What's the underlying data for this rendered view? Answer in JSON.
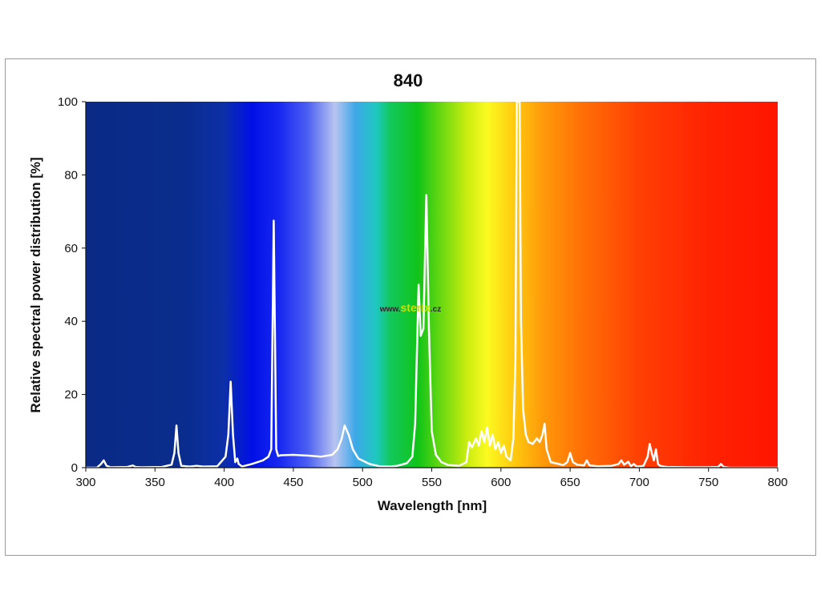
{
  "chart_data": {
    "type": "line",
    "title": "840",
    "xlabel": "Wavelength [nm]",
    "ylabel": "Relative spectral power distribution [%]",
    "xlim": [
      300,
      800
    ],
    "ylim": [
      0,
      100
    ],
    "xticks": [
      300,
      350,
      400,
      450,
      500,
      550,
      600,
      650,
      700,
      750,
      800
    ],
    "yticks": [
      0,
      20,
      40,
      60,
      80,
      100
    ],
    "grid": false,
    "legend": "none",
    "line_color": "#ffffff",
    "background": "visible-spectrum color gradient",
    "series": [
      {
        "x": [
          300,
          308,
          311,
          313,
          315,
          318,
          330,
          334,
          336,
          340,
          355,
          362,
          364,
          365.5,
          367,
          369,
          375,
          380,
          385,
          395,
          401,
          403,
          404.7,
          406.4,
          408,
          409.5,
          410.5,
          413,
          420,
          428,
          432,
          434,
          435.8,
          437.6,
          439,
          441,
          450,
          460,
          470,
          478,
          482,
          485,
          487,
          490,
          493,
          497,
          505,
          512,
          520,
          525,
          532,
          536,
          538,
          540.5,
          542,
          544,
          546.1,
          548,
          550,
          553,
          557,
          562,
          570,
          575,
          577,
          579,
          582,
          584,
          586,
          588,
          590,
          592,
          594,
          596,
          598,
          600,
          602,
          604,
          607,
          609,
          610.5,
          611.5,
          613.5,
          614.5,
          616,
          618,
          620,
          623,
          626,
          628,
          630,
          631.5,
          633,
          636,
          645,
          648,
          650,
          652,
          655,
          660,
          662,
          664,
          670,
          680,
          685,
          687,
          689,
          692,
          694,
          696,
          698,
          703,
          706,
          707.5,
          709,
          710.5,
          712,
          713.5,
          715,
          720,
          735,
          750,
          757,
          759,
          761,
          765,
          780,
          800
        ],
        "y": [
          0,
          0,
          1,
          2,
          0.5,
          0.1,
          0.2,
          0.6,
          0.2,
          0.1,
          0.2,
          0.8,
          4,
          11.5,
          4,
          0.5,
          0.3,
          0.5,
          0.3,
          0.4,
          3,
          9,
          23.5,
          9,
          1.5,
          2.5,
          1,
          0.3,
          1,
          2,
          3,
          5,
          67.5,
          5,
          3.2,
          3.4,
          3.5,
          3.3,
          3,
          3.5,
          5,
          8,
          11.5,
          9,
          5,
          2.5,
          1,
          0.4,
          0.3,
          0.5,
          1.2,
          3,
          12,
          50,
          36,
          38,
          74.5,
          38,
          10,
          3.5,
          1.5,
          0.7,
          0.5,
          1.5,
          7,
          5.5,
          8,
          6,
          10,
          7,
          11,
          6,
          9,
          5,
          7,
          4,
          6,
          3,
          2,
          8,
          30,
          100,
          100,
          40,
          16,
          9,
          7,
          6.5,
          8,
          7,
          9,
          12,
          5,
          1.5,
          0.7,
          1.5,
          4,
          1.5,
          0.8,
          0.6,
          2,
          0.6,
          0.4,
          0.5,
          1,
          2,
          0.8,
          1.6,
          0.4,
          1,
          0.3,
          0.5,
          3,
          6.5,
          4,
          2,
          5,
          1,
          0.5,
          0.2,
          0.1,
          0.1,
          0.2,
          1,
          0.2,
          0,
          0,
          0
        ]
      }
    ]
  },
  "watermark": {
    "prefix": "www.",
    "name": "sterix",
    "suffix": ".cz"
  }
}
